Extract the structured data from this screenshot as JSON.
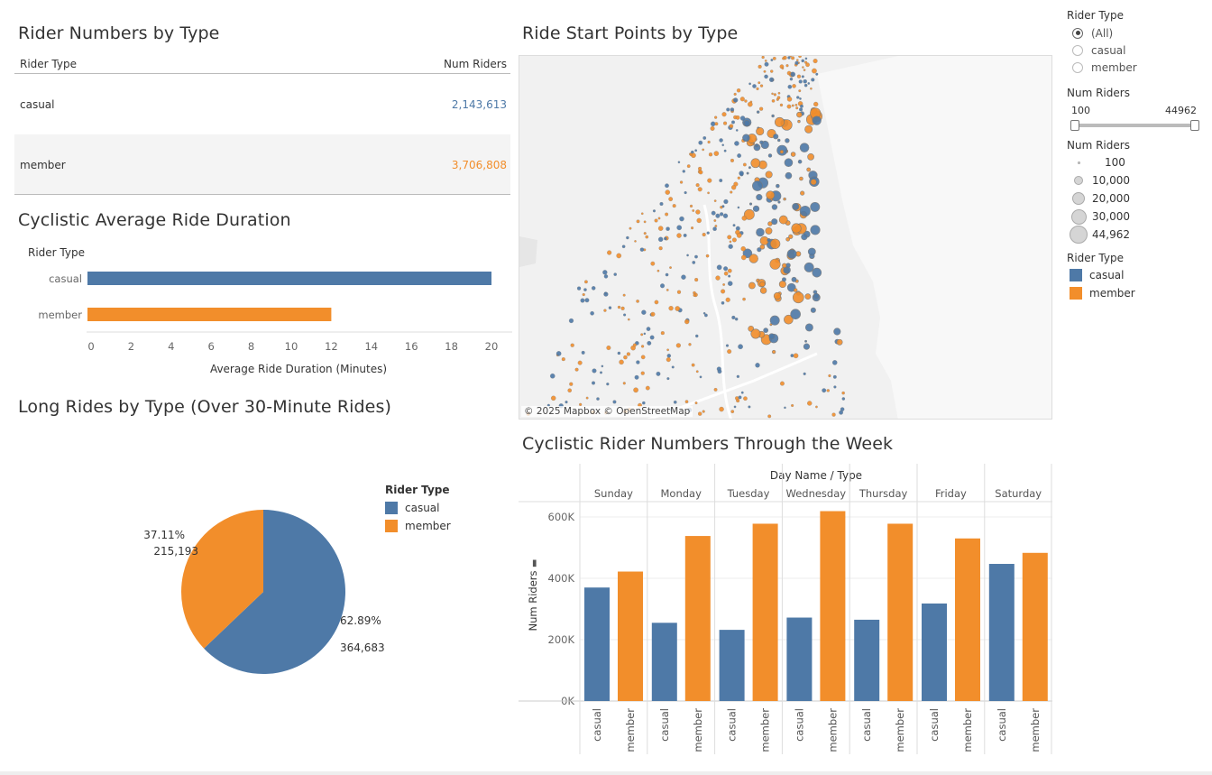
{
  "table": {
    "title": "Rider Numbers by Type",
    "col_type": "Rider Type",
    "col_num": "Num Riders",
    "rows": [
      {
        "type": "casual",
        "num": "2,143,613"
      },
      {
        "type": "member",
        "num": "3,706,808"
      }
    ]
  },
  "duration": {
    "title": "Cyclistic Average Ride Duration",
    "axis_header": "Rider Type",
    "xlabel": "Average Ride Duration (Minutes)"
  },
  "pie": {
    "title": "Long Rides by Type (Over 30-Minute Rides)",
    "legend_title": "Rider Type",
    "label_member_pct": "37.11%",
    "label_member_val": "215,193",
    "label_casual_pct": "62.89%",
    "label_casual_val": "364,683"
  },
  "map": {
    "title": "Ride Start Points by Type",
    "credit": "© 2025 Mapbox © OpenStreetMap"
  },
  "week": {
    "title": "Cyclistic Rider Numbers Through the Week",
    "header": "Day Name / Type",
    "ylabel": "Num Riders"
  },
  "filters": {
    "rider_type_title": "Rider Type",
    "options": [
      "(All)",
      "casual",
      "member"
    ],
    "selected": "(All)",
    "num_riders_title": "Num Riders",
    "range_min": "100",
    "range_max": "44962",
    "size_legend_title": "Num Riders",
    "size_legend": [
      "100",
      "10,000",
      "20,000",
      "30,000",
      "44,962"
    ],
    "color_legend_title": "Rider Type",
    "color_legend": [
      "casual",
      "member"
    ]
  },
  "colors": {
    "casual": "#4e79a7",
    "member": "#f28e2b"
  },
  "chart_data": [
    {
      "type": "bar",
      "orientation": "horizontal",
      "title": "Cyclistic Average Ride Duration",
      "categories": [
        "casual",
        "member"
      ],
      "values": [
        20,
        12
      ],
      "xlabel": "Average Ride Duration (Minutes)",
      "ylabel": "Rider Type",
      "xlim": [
        0,
        20
      ],
      "xticks": [
        0,
        2,
        4,
        6,
        8,
        10,
        12,
        14,
        16,
        18,
        20
      ]
    },
    {
      "type": "pie",
      "title": "Long Rides by Type (Over 30-Minute Rides)",
      "categories": [
        "casual",
        "member"
      ],
      "values": [
        364683,
        215193
      ],
      "percents": [
        62.89,
        37.11
      ]
    },
    {
      "type": "bar",
      "title": "Cyclistic Rider Numbers Through the Week",
      "categories": [
        "Sunday",
        "Monday",
        "Tuesday",
        "Wednesday",
        "Thursday",
        "Friday",
        "Saturday"
      ],
      "series": [
        {
          "name": "casual",
          "values": [
            370000,
            255000,
            232000,
            272000,
            265000,
            318000,
            447000
          ]
        },
        {
          "name": "member",
          "values": [
            422000,
            538000,
            578000,
            619000,
            578000,
            530000,
            483000
          ]
        }
      ],
      "xlabel": "Day Name / Type",
      "ylabel": "Num Riders",
      "ylim": [
        0,
        650000
      ],
      "yticks": [
        "0K",
        "200K",
        "400K",
        "600K"
      ]
    }
  ]
}
